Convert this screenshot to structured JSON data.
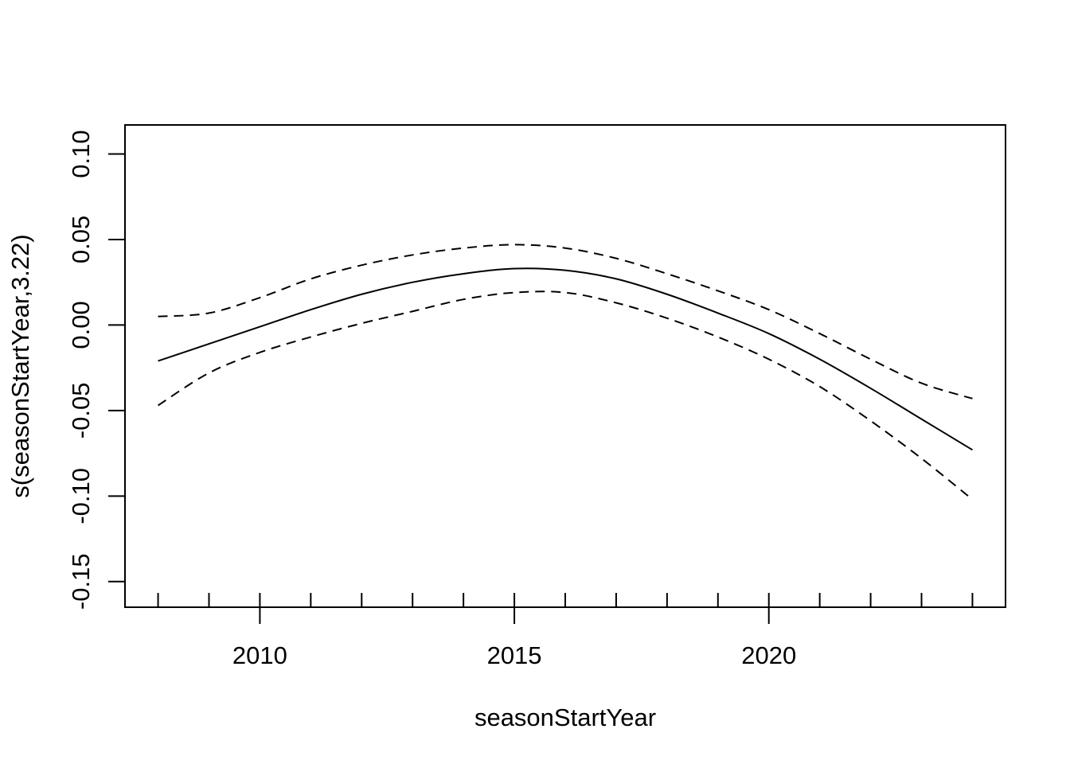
{
  "chart_data": {
    "type": "line",
    "title": "",
    "xlabel": "seasonStartYear",
    "ylabel": "s(seasonStartYear,3.22)",
    "xlim": [
      2007.35,
      2024.65
    ],
    "ylim": [
      -0.165,
      0.117
    ],
    "x_ticks": [
      2010,
      2015,
      2020
    ],
    "x_tick_labels": [
      "2010",
      "2015",
      "2020"
    ],
    "y_ticks": [
      -0.15,
      -0.1,
      -0.05,
      0.0,
      0.05,
      0.1
    ],
    "y_tick_labels": [
      "-0.15",
      "-0.10",
      "-0.05",
      "0.00",
      "0.05",
      "0.10"
    ],
    "rug": [
      2008,
      2009,
      2010,
      2011,
      2012,
      2013,
      2014,
      2015,
      2016,
      2017,
      2018,
      2019,
      2020,
      2021,
      2022,
      2023,
      2024
    ],
    "grid": false,
    "legend": "none",
    "series": [
      {
        "style": "solid",
        "x": [
          2008,
          2009,
          2010,
          2011,
          2012,
          2013,
          2014,
          2015,
          2016,
          2017,
          2018,
          2019,
          2020,
          2021,
          2022,
          2023,
          2024
        ],
        "values": [
          -0.021,
          -0.011,
          -0.001,
          0.009,
          0.018,
          0.025,
          0.03,
          0.033,
          0.032,
          0.027,
          0.018,
          0.007,
          -0.005,
          -0.02,
          -0.037,
          -0.055,
          -0.073
        ]
      },
      {
        "style": "dashed",
        "x": [
          2008,
          2009,
          2010,
          2011,
          2012,
          2013,
          2014,
          2015,
          2016,
          2017,
          2018,
          2019,
          2020,
          2021,
          2022,
          2023,
          2024
        ],
        "values": [
          0.005,
          0.007,
          0.016,
          0.027,
          0.035,
          0.041,
          0.045,
          0.047,
          0.045,
          0.039,
          0.03,
          0.02,
          0.009,
          -0.005,
          -0.02,
          -0.034,
          -0.043
        ]
      },
      {
        "style": "dashed",
        "x": [
          2008,
          2009,
          2010,
          2011,
          2012,
          2013,
          2014,
          2015,
          2016,
          2017,
          2018,
          2019,
          2020,
          2021,
          2022,
          2023,
          2024
        ],
        "values": [
          -0.047,
          -0.028,
          -0.016,
          -0.007,
          0.001,
          0.008,
          0.015,
          0.019,
          0.019,
          0.013,
          0.004,
          -0.007,
          -0.02,
          -0.036,
          -0.056,
          -0.078,
          -0.102
        ]
      }
    ]
  }
}
